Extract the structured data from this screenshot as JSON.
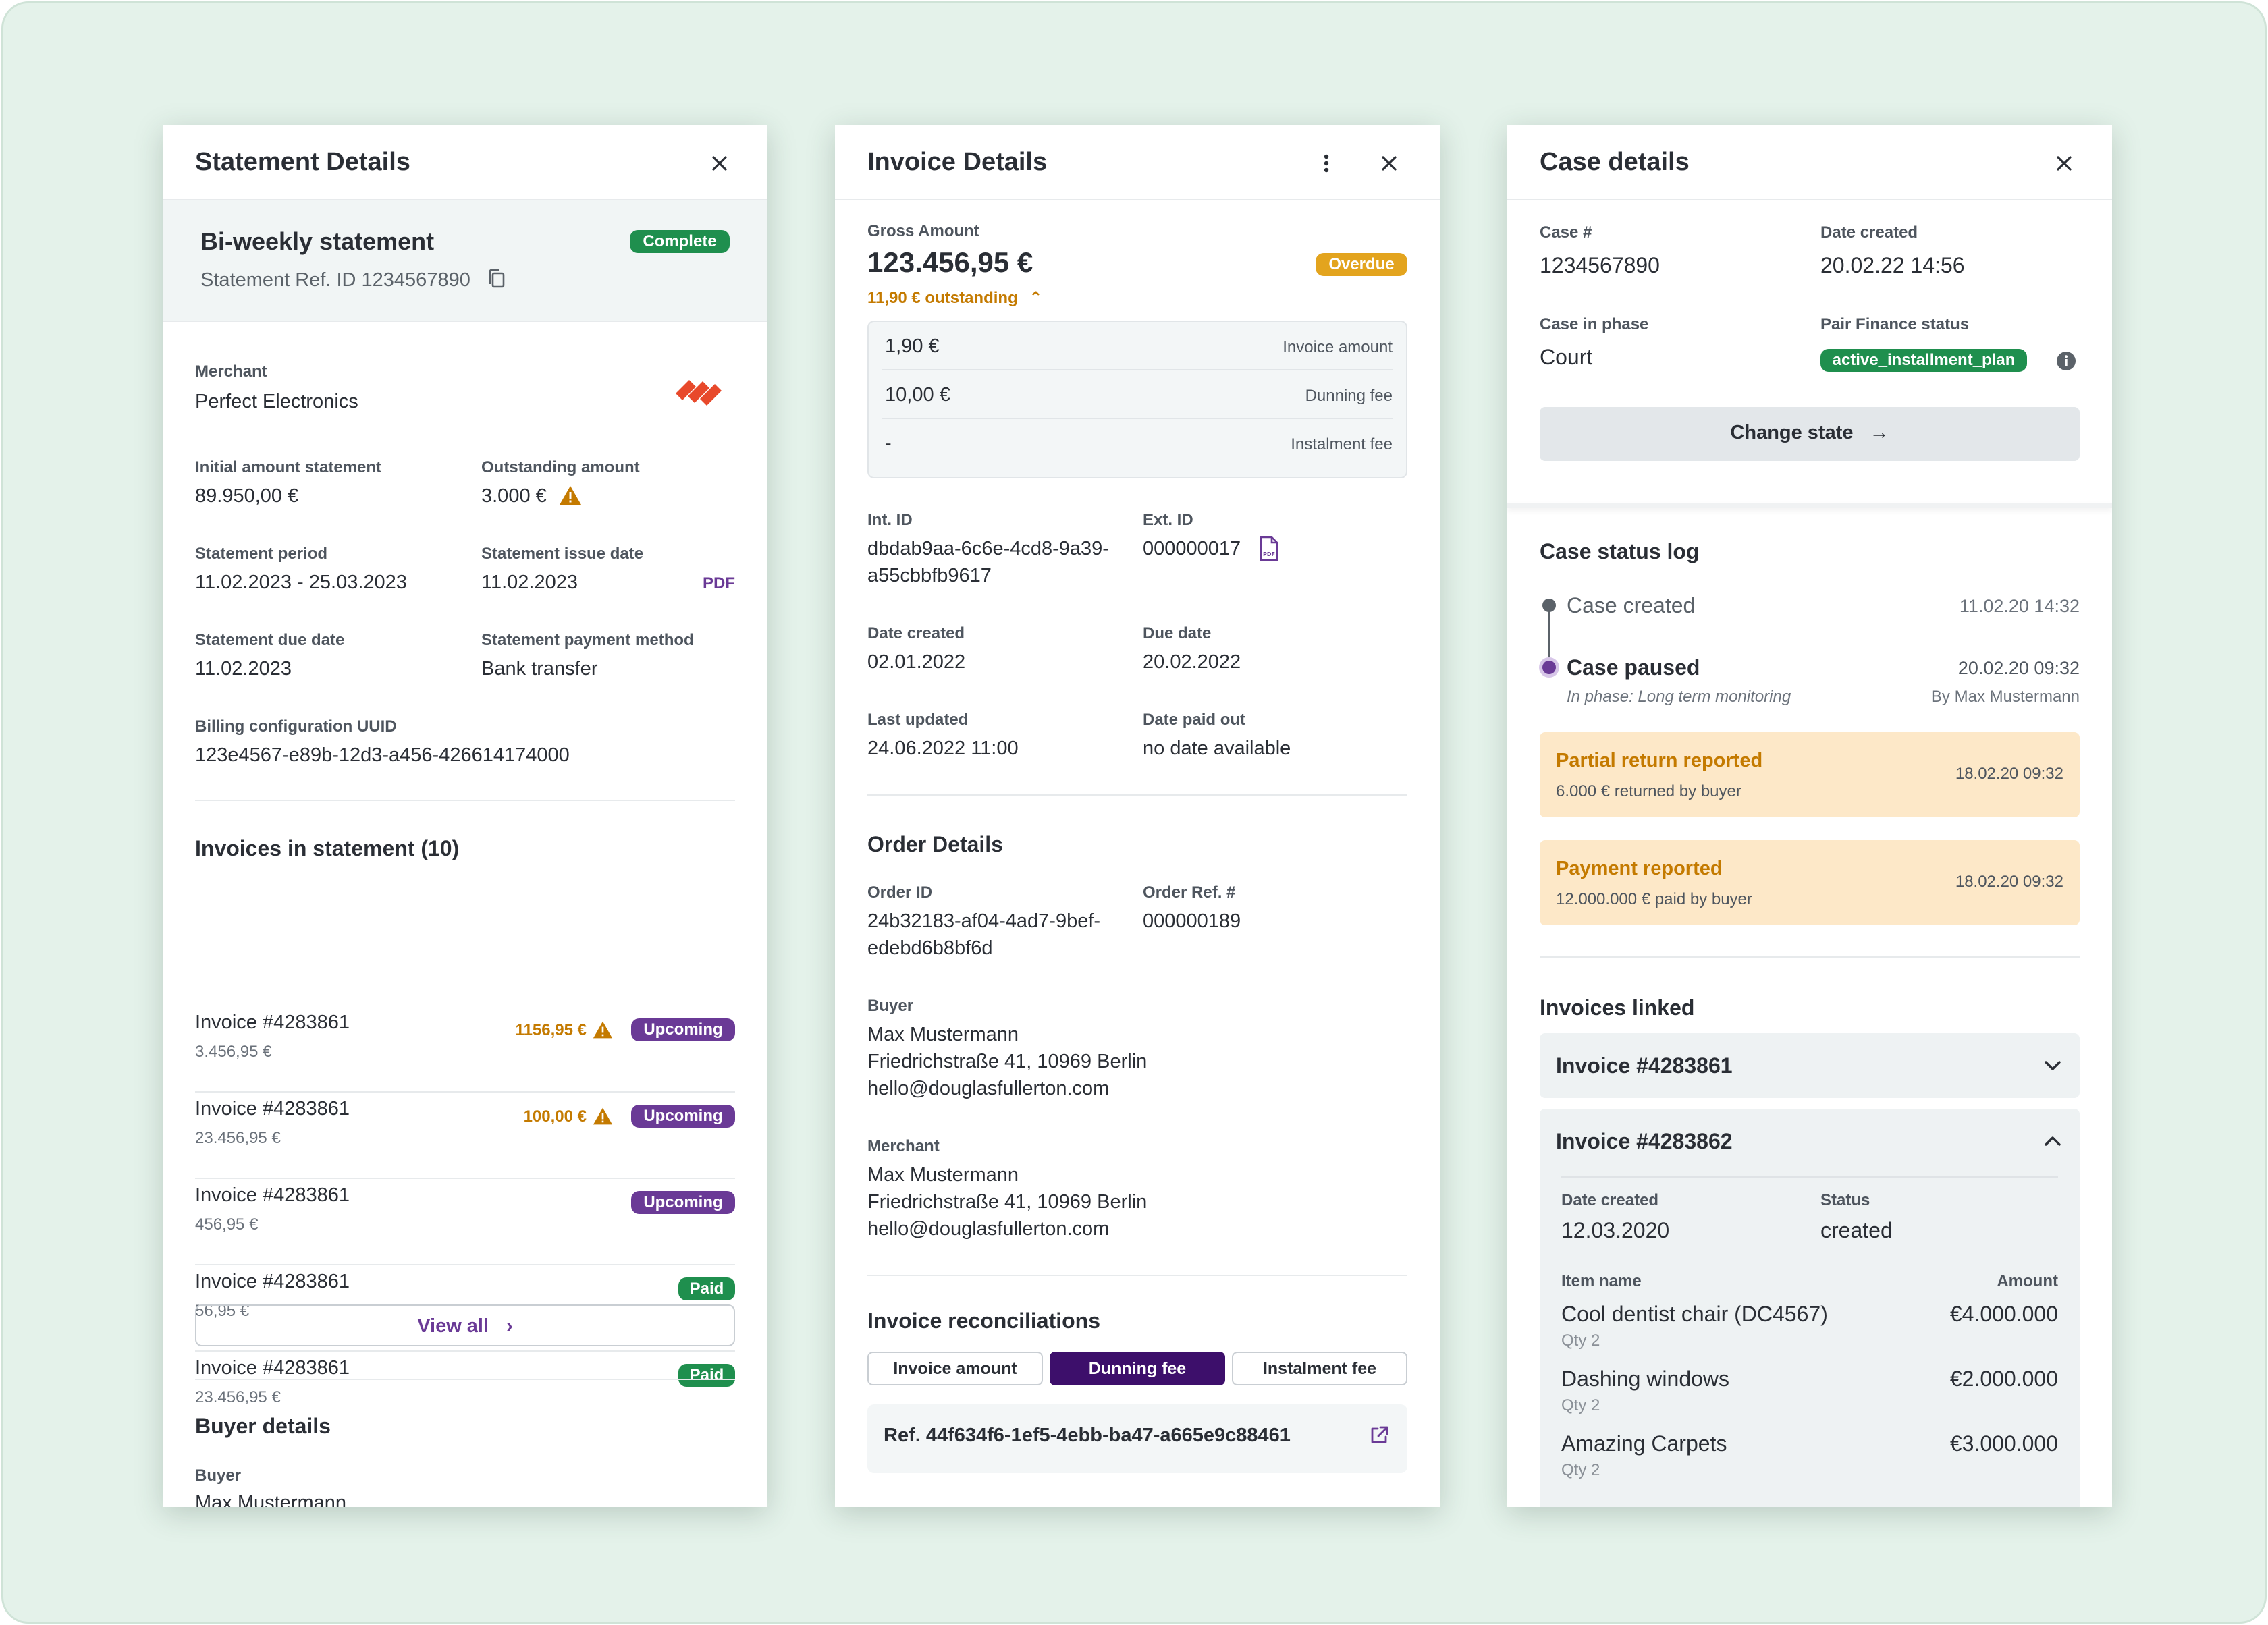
{
  "statement": {
    "title": "Statement Details",
    "statement_name": "Bi-weekly statement",
    "status_badge": "Complete",
    "ref_id": "Statement Ref. ID 1234567890",
    "merchant_label": "Merchant",
    "merchant_value": "Perfect Electronics",
    "initial_label": "Initial amount statement",
    "initial_value": "89.950,00 €",
    "outstanding_label": "Outstanding amount",
    "outstanding_value": "3.000 €",
    "period_label": "Statement period",
    "period_value": "11.02.2023 - 25.03.2023",
    "issue_label": "Statement issue date",
    "issue_value": "11.02.2023",
    "pdf_link": "PDF",
    "due_label": "Statement due date",
    "due_value": "11.02.2023",
    "method_label": "Statement payment method",
    "method_value": "Bank transfer",
    "uuid_label": "Billing configuration UUID",
    "uuid_value": "123e4567-e89b-12d3-a456-426614174000",
    "invoices_heading": "Invoices in statement (10)",
    "invoices": [
      {
        "name": "Invoice #4283861",
        "amount": "3.456,95 €",
        "outstanding": "1156,95 €",
        "status": "Upcoming",
        "status_color": "#6a3a96"
      },
      {
        "name": "Invoice #4283861",
        "amount": "23.456,95 €",
        "outstanding": "100,00 €",
        "status": "Upcoming",
        "status_color": "#6a3a96"
      },
      {
        "name": "Invoice #4283861",
        "amount": "456,95 €",
        "outstanding": "",
        "status": "Upcoming",
        "status_color": "#6a3a96"
      },
      {
        "name": "Invoice #4283861",
        "amount": "56,95 €",
        "outstanding": "",
        "status": "Paid",
        "status_color": "#1f8f4e"
      },
      {
        "name": "Invoice #4283861",
        "amount": "23.456,95 €",
        "outstanding": "",
        "status": "Paid",
        "status_color": "#1f8f4e"
      }
    ],
    "view_all": "View all",
    "buyer_heading": "Buyer details",
    "buyer_label": "Buyer",
    "buyer_value": "Max Mustermann"
  },
  "invoice": {
    "title": "Invoice Details",
    "gross_label": "Gross Amount",
    "gross_value": "123.456,95 €",
    "status_badge": "Overdue",
    "outstanding_text": "11,90 € outstanding",
    "breakdown": [
      {
        "value": "1,90 €",
        "label": "Invoice amount"
      },
      {
        "value": "10,00 €",
        "label": "Dunning fee"
      },
      {
        "value": "-",
        "label": "Instalment fee"
      }
    ],
    "int_id_label": "Int. ID",
    "int_id_line1": "dbdab9aa-6c6e-4cd8-9a39-",
    "int_id_line2": "a55cbbfb9617",
    "ext_id_label": "Ext. ID",
    "ext_id_value": "000000017",
    "created_label": "Date created",
    "created_value": "02.01.2022",
    "due_label": "Due date",
    "due_value": "20.02.2022",
    "updated_label": "Last updated",
    "updated_value": "24.06.2022 11:00",
    "paidout_label": "Date paid out",
    "paidout_value": "no date available",
    "order_heading": "Order Details",
    "order_id_label": "Order ID",
    "order_id_line1": "24b32183-af04-4ad7-9bef-",
    "order_id_line2": "edebd6b8bf6d",
    "order_ref_label": "Order Ref. #",
    "order_ref_value": "000000189",
    "buyer_label": "Buyer",
    "buyer_name": "Max Mustermann",
    "buyer_address": "Friedrichstraße 41, 10969 Berlin",
    "buyer_email": "hello@douglasfullerton.com",
    "merchant_label": "Merchant",
    "merchant_name": "Max Mustermann",
    "merchant_address": "Friedrichstraße 41, 10969 Berlin",
    "merchant_email": "hello@douglasfullerton.com",
    "recon_heading": "Invoice reconciliations",
    "recon_tabs": [
      "Invoice amount",
      "Dunning fee",
      "Instalment fee"
    ],
    "recon_active": "Dunning fee",
    "recon_ref": "Ref. 44f634f6-1ef5-4ebb-ba47-a665e9c88461"
  },
  "case": {
    "title": "Case details",
    "case_no_label": "Case #",
    "case_no_value": "1234567890",
    "created_label": "Date created",
    "created_value": "20.02.22 14:56",
    "phase_label": "Case in phase",
    "phase_value": "Court",
    "pf_status_label": "Pair Finance status",
    "pf_status_value": "active_installment_plan",
    "change_state": "Change state",
    "log_heading": "Case status log",
    "log_created": "Case created",
    "log_created_time": "11.02.20 14:32",
    "log_paused": "Case paused",
    "log_paused_time": "20.02.20 09:32",
    "log_paused_phase": "In phase: Long term monitoring",
    "log_paused_by": "By Max Mustermann",
    "alerts": [
      {
        "title": "Partial return reported",
        "detail": "6.000 € returned by buyer",
        "time": "18.02.20 09:32"
      },
      {
        "title": "Payment reported",
        "detail": "12.000.000 € paid by buyer",
        "time": "18.02.20 09:32"
      }
    ],
    "linked_heading": "Invoices linked",
    "linked_collapsed": "Invoice #4283861",
    "linked_expanded": "Invoice #4283862",
    "exp_created_label": "Date created",
    "exp_created_value": "12.03.2020",
    "exp_status_label": "Status",
    "exp_status_value": "created",
    "item_name_label": "Item name",
    "amount_label": "Amount",
    "items": [
      {
        "name": "Cool dentist chair (DC4567)",
        "qty": "Qty 2",
        "amount": "€4.000.000"
      },
      {
        "name": "Dashing windows",
        "qty": "Qty 2",
        "amount": "€2.000.000"
      },
      {
        "name": "Amazing Carpets",
        "qty": "Qty 2",
        "amount": "€3.000.000"
      }
    ]
  },
  "colors": {
    "purple": "#6a3a96",
    "green": "#1f8f4e",
    "amber": "#e3a41e",
    "warning_text": "#c47a00",
    "dark_purple": "#3d0f6b",
    "alert_bg": "#fde8c8",
    "background": "#e4f2ea"
  }
}
